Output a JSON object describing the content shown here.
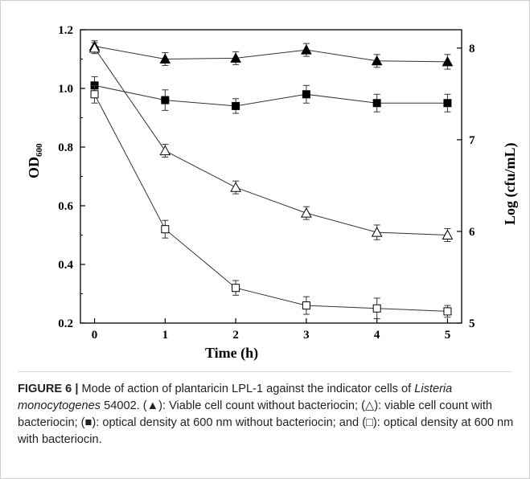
{
  "chart_data": {
    "type": "line",
    "x": [
      0,
      1,
      2,
      3,
      4,
      5
    ],
    "xlabel": "Time (h)",
    "ylabel_left": "OD600",
    "ylabel_left_main": "OD",
    "ylabel_left_sub": "600",
    "ylabel_right": "Log (cfu/mL)",
    "xlim": [
      -0.2,
      5.2
    ],
    "ylim_left": [
      0.2,
      1.2
    ],
    "ylim_right": [
      5,
      8.2
    ],
    "x_ticks": [
      "0",
      "1",
      "2",
      "3",
      "4",
      "5"
    ],
    "y_left_ticks": [
      "0.2",
      "0.4",
      "0.6",
      "0.8",
      "1.0",
      "1.2"
    ],
    "y_right_ticks": [
      "5",
      "6",
      "7",
      "8"
    ],
    "series": [
      {
        "marker": "filled-triangle",
        "axis": "right",
        "values": [
          8.02,
          7.88,
          7.89,
          7.98,
          7.86,
          7.85
        ],
        "errors": [
          0.06,
          0.07,
          0.07,
          0.07,
          0.07,
          0.08
        ]
      },
      {
        "marker": "open-triangle",
        "axis": "right",
        "values": [
          8.0,
          6.88,
          6.48,
          6.2,
          5.99,
          5.96
        ],
        "errors": [
          0.06,
          0.07,
          0.07,
          0.07,
          0.08,
          0.07
        ]
      },
      {
        "marker": "filled-square",
        "axis": "left",
        "values": [
          1.01,
          0.96,
          0.94,
          0.98,
          0.95,
          0.95
        ],
        "errors": [
          0.03,
          0.035,
          0.025,
          0.03,
          0.03,
          0.03
        ]
      },
      {
        "marker": "open-square",
        "axis": "left",
        "values": [
          0.98,
          0.52,
          0.32,
          0.26,
          0.25,
          0.24
        ],
        "errors": [
          0.03,
          0.03,
          0.025,
          0.03,
          0.035,
          0.02
        ]
      }
    ]
  },
  "caption": {
    "figure_label": "FIGURE 6 |",
    "part1": " Mode of action of plantaricin LPL-1 against the indicator cells of ",
    "species": "Listeria monocytogenes",
    "part2": " 54002. (▲): Viable cell count without bacteriocin; (△): viable cell count with bacteriocin; (■): optical density at 600 nm without bacteriocin; and (□): optical density at 600 nm with bacteriocin."
  }
}
